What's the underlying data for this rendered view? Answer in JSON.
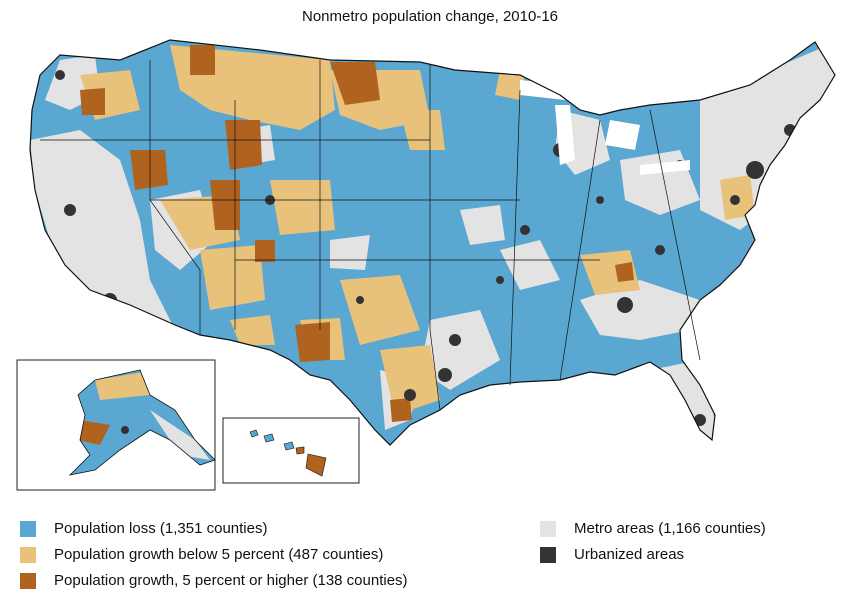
{
  "title": "Nonmetro population change, 2010-16",
  "colors": {
    "loss": "#5aa7d2",
    "growth_low": "#e8c27b",
    "growth_high": "#b0621f",
    "metro": "#e3e3e3",
    "urban": "#333333",
    "border": "#111111"
  },
  "legend": [
    {
      "key": "loss",
      "label": "Population loss (1,351 counties)"
    },
    {
      "key": "growth_low",
      "label": "Population growth below 5 percent (487 counties)"
    },
    {
      "key": "growth_high",
      "label": "Population growth, 5 percent or higher (138 counties)"
    },
    {
      "key": "metro",
      "label": "Metro areas (1,166 counties)"
    },
    {
      "key": "urban",
      "label": "Urbanized areas"
    }
  ]
}
